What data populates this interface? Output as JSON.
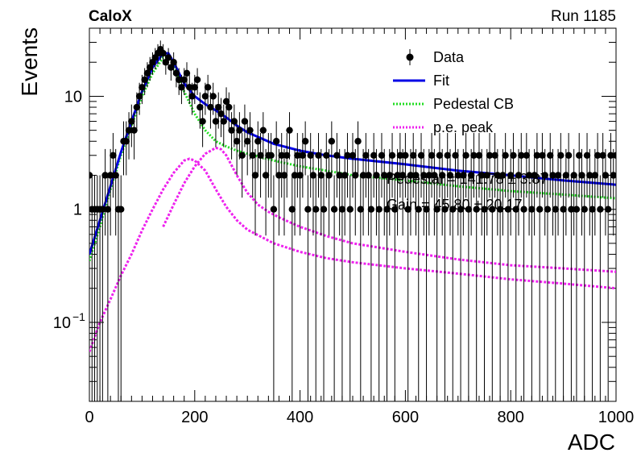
{
  "header": {
    "experiment": "CaloX",
    "run": "Run 1185"
  },
  "chart_data": {
    "type": "scatter",
    "xlabel": "ADC",
    "ylabel": "Events",
    "xlim": [
      0,
      1000
    ],
    "ylim": [
      0.02,
      40
    ],
    "y_scale": "log",
    "x_ticks": [
      "0",
      "200",
      "400",
      "600",
      "800",
      "1000"
    ],
    "y_ticks": [
      {
        "value": 0.1,
        "label": "10",
        "exponent": "−1"
      },
      {
        "value": 1,
        "label": "1",
        "exponent": ""
      },
      {
        "value": 10,
        "label": "10",
        "exponent": ""
      }
    ],
    "legend": [
      {
        "label": "Data",
        "style": "marker",
        "color": "#000000"
      },
      {
        "label": "Fit",
        "style": "solid",
        "color": "#0000e6"
      },
      {
        "label": "Pedestal CB",
        "style": "dotted",
        "color": "#22dd22"
      },
      {
        "label": "p.e. peak",
        "style": "dotted",
        "color": "#ee22ee"
      }
    ],
    "legend_position": "top-right",
    "annotations": [
      "Pedestal = 141.78 ± 3.87",
      "Gain = 45.80 ± 20.17"
    ],
    "data": {
      "x": [
        0,
        5,
        10,
        15,
        20,
        25,
        30,
        35,
        40,
        45,
        50,
        55,
        60,
        65,
        70,
        75,
        80,
        85,
        90,
        95,
        100,
        105,
        110,
        115,
        120,
        125,
        130,
        135,
        140,
        145,
        150,
        155,
        160,
        165,
        170,
        175,
        180,
        185,
        190,
        195,
        200,
        205,
        210,
        215,
        220,
        225,
        230,
        235,
        240,
        245,
        250,
        255,
        260,
        265,
        270,
        275,
        280,
        285,
        290,
        295,
        300,
        305,
        310,
        315,
        320,
        325,
        330,
        335,
        340,
        345,
        350,
        355,
        360,
        365,
        370,
        375,
        380,
        385,
        390,
        395,
        400,
        405,
        410,
        415,
        420,
        425,
        430,
        435,
        440,
        445,
        450,
        455,
        460,
        465,
        470,
        475,
        480,
        485,
        490,
        495,
        500,
        505,
        510,
        515,
        520,
        525,
        530,
        535,
        540,
        545,
        550,
        555,
        560,
        565,
        570,
        575,
        580,
        585,
        590,
        595,
        600,
        605,
        610,
        615,
        620,
        625,
        630,
        635,
        640,
        645,
        650,
        655,
        660,
        665,
        670,
        675,
        680,
        685,
        690,
        695,
        700,
        705,
        710,
        715,
        720,
        725,
        730,
        735,
        740,
        745,
        750,
        755,
        760,
        765,
        770,
        775,
        780,
        785,
        790,
        795,
        800,
        805,
        810,
        815,
        820,
        825,
        830,
        835,
        840,
        845,
        850,
        855,
        860,
        865,
        870,
        875,
        880,
        885,
        890,
        895,
        900,
        905,
        910,
        915,
        920,
        925,
        930,
        935,
        940,
        945,
        950,
        955,
        960,
        965,
        970,
        975,
        980,
        985,
        990,
        995,
        1000
      ],
      "y": [
        2,
        1,
        1,
        1,
        1,
        1,
        2,
        1,
        2,
        3,
        2,
        1,
        1,
        4,
        4,
        5,
        6,
        5,
        8,
        10,
        12,
        14,
        16,
        18,
        20,
        22,
        24,
        26,
        24,
        20,
        22,
        18,
        20,
        16,
        14,
        12,
        14,
        16,
        12,
        10,
        12,
        14,
        8,
        6,
        10,
        12,
        8,
        10,
        6,
        8,
        7,
        6,
        9,
        8,
        5,
        6,
        4,
        5,
        3,
        6,
        4,
        5,
        3,
        2,
        4,
        3,
        5,
        2,
        3,
        3,
        1,
        4,
        2,
        3,
        2,
        3,
        5,
        1,
        2,
        3,
        2,
        3,
        4,
        1,
        3,
        2,
        1,
        3,
        2,
        1,
        3,
        2,
        4,
        1,
        3,
        2,
        1,
        2,
        3,
        1,
        3,
        2,
        4,
        1,
        2,
        3,
        2,
        1,
        3,
        2,
        1,
        3,
        2,
        1,
        2,
        3,
        1,
        2,
        3,
        2,
        3,
        1,
        2,
        3,
        2,
        1,
        3,
        2,
        1,
        2,
        3,
        2,
        1,
        3,
        2,
        1,
        3,
        2,
        1,
        3,
        2,
        1,
        2,
        3,
        1,
        2,
        3,
        1,
        3,
        2,
        1,
        2,
        3,
        1,
        3,
        2,
        1,
        2,
        3,
        1,
        2,
        3,
        1,
        2,
        3,
        1,
        3,
        2,
        1,
        2,
        3,
        1,
        3,
        2,
        1,
        3,
        2,
        1,
        2,
        3,
        1,
        2,
        3,
        1,
        2,
        1,
        3,
        2,
        1,
        3,
        2,
        1,
        2,
        3,
        1,
        3,
        2,
        1,
        3,
        2,
        3
      ]
    },
    "fit": {
      "x": [
        0,
        20,
        40,
        60,
        80,
        100,
        120,
        140,
        150,
        160,
        180,
        200,
        220,
        240,
        260,
        280,
        300,
        350,
        400,
        450,
        500,
        600,
        700,
        800,
        900,
        1000
      ],
      "y": [
        0.4,
        0.8,
        1.6,
        3.2,
        6,
        11,
        18,
        24,
        24,
        20,
        13,
        10,
        8.5,
        7.5,
        6.5,
        5.5,
        4.8,
        3.8,
        3.3,
        3.0,
        2.8,
        2.5,
        2.2,
        2.0,
        1.8,
        1.65
      ]
    },
    "pedestal_cb": {
      "x": [
        0,
        20,
        40,
        60,
        80,
        100,
        120,
        140,
        150,
        160,
        180,
        200,
        220,
        240,
        260,
        280,
        300,
        350,
        400,
        450,
        500,
        600,
        700,
        800,
        900,
        1000
      ],
      "y": [
        0.35,
        0.7,
        1.5,
        3.0,
        5.5,
        10,
        16,
        22,
        23,
        19,
        11,
        7,
        5,
        4,
        3.6,
        3.3,
        3.1,
        2.7,
        2.4,
        2.2,
        2.0,
        1.8,
        1.6,
        1.45,
        1.35,
        1.25
      ]
    },
    "pe_peak_1": {
      "x": [
        0,
        20,
        40,
        60,
        80,
        100,
        120,
        140,
        160,
        180,
        190,
        200,
        220,
        240,
        260,
        280,
        300,
        350,
        400,
        450,
        500,
        600,
        700,
        800,
        900,
        1000
      ],
      "y": [
        0.055,
        0.1,
        0.16,
        0.26,
        0.4,
        0.65,
        1.0,
        1.5,
        2.1,
        2.7,
        2.8,
        2.7,
        2.2,
        1.5,
        1.05,
        0.8,
        0.66,
        0.5,
        0.42,
        0.37,
        0.34,
        0.3,
        0.27,
        0.24,
        0.22,
        0.2
      ]
    },
    "pe_peak_2": {
      "x": [
        140,
        160,
        180,
        200,
        220,
        240,
        250,
        260,
        280,
        300,
        320,
        340,
        360,
        380,
        400,
        450,
        500,
        600,
        700,
        800,
        900,
        1000
      ],
      "y": [
        0.7,
        1.1,
        1.7,
        2.4,
        3.1,
        3.5,
        3.4,
        3.0,
        2.0,
        1.4,
        1.1,
        0.95,
        0.85,
        0.77,
        0.7,
        0.58,
        0.5,
        0.42,
        0.36,
        0.32,
        0.3,
        0.28
      ]
    }
  }
}
